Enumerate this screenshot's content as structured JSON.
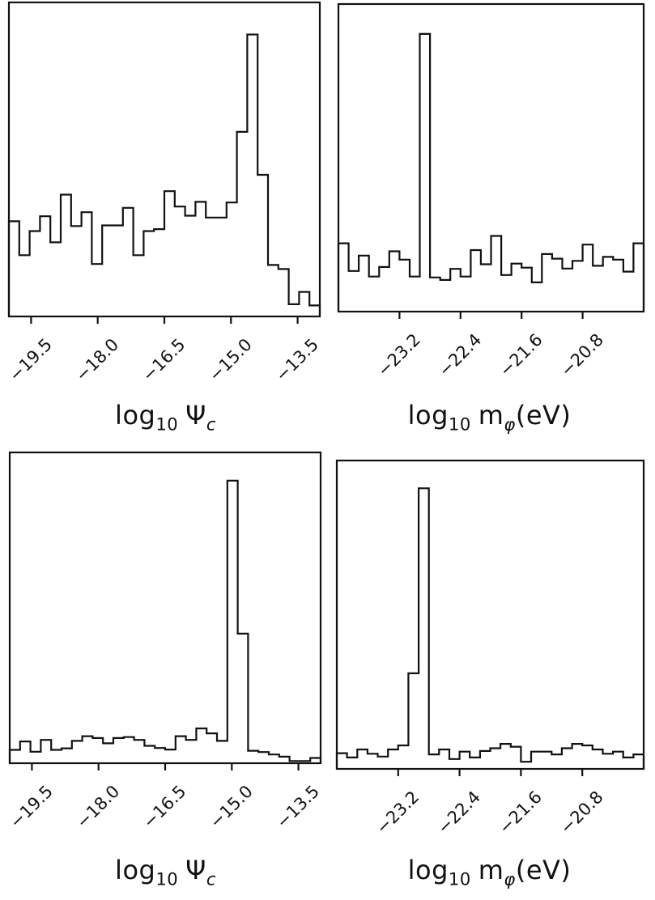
{
  "figure": {
    "background": "#ffffff",
    "line_color": "#111111",
    "text_color": "#111111",
    "title": "",
    "layout": "2x2 grid of outline (step) histograms"
  },
  "chart_data": [
    {
      "position": "top-left",
      "type": "bar",
      "subtype": "step-histogram",
      "title": "",
      "xlabel": "log_10 Psi_c",
      "xlabel_parts": {
        "fn": "log",
        "fn_sub": "10",
        "var": "Ψ",
        "var_sub": "c",
        "suffix": ""
      },
      "ylabel": "",
      "x_range": [
        -20.0,
        -13.0
      ],
      "x_ticks": [
        -19.5,
        -18.0,
        -16.5,
        -15.0,
        -13.5
      ],
      "x_tick_labels": [
        "−19.5",
        "−18.0",
        "−16.5",
        "−15.0",
        "−13.5"
      ],
      "y_tick_labels": [],
      "grid": false,
      "legend": "none",
      "n_bins": 30,
      "heights_frac_of_axis": [
        0.303,
        0.195,
        0.272,
        0.319,
        0.236,
        0.388,
        0.288,
        0.332,
        0.167,
        0.29,
        0.29,
        0.346,
        0.195,
        0.272,
        0.278,
        0.399,
        0.35,
        0.321,
        0.365,
        0.315,
        0.315,
        0.363,
        0.588,
        0.898,
        0.451,
        0.164,
        0.151,
        0.039,
        0.078,
        0.035
      ]
    },
    {
      "position": "top-right",
      "type": "bar",
      "subtype": "step-histogram",
      "title": "",
      "xlabel": "log_10 m_phi(eV)",
      "xlabel_parts": {
        "fn": "log",
        "fn_sub": "10",
        "var": "m",
        "var_sub": "φ",
        "suffix": "(eV)"
      },
      "ylabel": "",
      "x_range": [
        -24.0,
        -20.0
      ],
      "x_ticks": [
        -23.2,
        -22.4,
        -21.6,
        -20.8
      ],
      "x_tick_labels": [
        "−23.2",
        "−22.4",
        "−21.6",
        "−20.8"
      ],
      "y_tick_labels": [],
      "grid": false,
      "legend": "none",
      "n_bins": 30,
      "heights_frac_of_axis": [
        0.222,
        0.132,
        0.182,
        0.114,
        0.145,
        0.196,
        0.169,
        0.114,
        0.903,
        0.111,
        0.103,
        0.139,
        0.114,
        0.2,
        0.154,
        0.246,
        0.119,
        0.156,
        0.143,
        0.095,
        0.187,
        0.172,
        0.14,
        0.165,
        0.218,
        0.149,
        0.178,
        0.169,
        0.13,
        0.222
      ]
    },
    {
      "position": "bottom-left",
      "type": "bar",
      "subtype": "step-histogram",
      "title": "",
      "xlabel": "log_10 Psi_c",
      "xlabel_parts": {
        "fn": "log",
        "fn_sub": "10",
        "var": "Ψ",
        "var_sub": "c",
        "suffix": ""
      },
      "ylabel": "",
      "x_range": [
        -20.0,
        -13.0
      ],
      "x_ticks": [
        -19.5,
        -18.0,
        -16.5,
        -15.0,
        -13.5
      ],
      "x_tick_labels": [
        "−19.5",
        "−18.0",
        "−16.5",
        "−15.0",
        "−13.5"
      ],
      "y_tick_labels": [],
      "grid": false,
      "legend": "none",
      "n_bins": 30,
      "heights_frac_of_axis": [
        0.043,
        0.07,
        0.037,
        0.075,
        0.043,
        0.048,
        0.072,
        0.087,
        0.081,
        0.064,
        0.081,
        0.084,
        0.075,
        0.056,
        0.049,
        0.044,
        0.087,
        0.075,
        0.112,
        0.096,
        0.072,
        0.909,
        0.417,
        0.04,
        0.036,
        0.028,
        0.021,
        0.007,
        0.007,
        0.017
      ]
    },
    {
      "position": "bottom-right",
      "type": "bar",
      "subtype": "step-histogram",
      "title": "",
      "xlabel": "log_10 m_phi(eV)",
      "xlabel_parts": {
        "fn": "log",
        "fn_sub": "10",
        "var": "m",
        "var_sub": "φ",
        "suffix": "(eV)"
      },
      "ylabel": "",
      "x_range": [
        -24.0,
        -20.0
      ],
      "x_ticks": [
        -23.2,
        -22.4,
        -21.6,
        -20.8
      ],
      "x_tick_labels": [
        "−23.2",
        "−22.4",
        "−21.6",
        "−20.8"
      ],
      "y_tick_labels": [],
      "grid": false,
      "legend": "none",
      "n_bins": 30,
      "heights_frac_of_axis": [
        0.051,
        0.037,
        0.063,
        0.049,
        0.04,
        0.063,
        0.076,
        0.31,
        0.91,
        0.047,
        0.063,
        0.032,
        0.056,
        0.037,
        0.058,
        0.067,
        0.081,
        0.072,
        0.023,
        0.056,
        0.056,
        0.047,
        0.067,
        0.081,
        0.076,
        0.063,
        0.049,
        0.056,
        0.037,
        0.047
      ]
    }
  ]
}
